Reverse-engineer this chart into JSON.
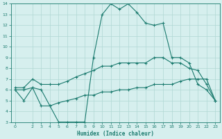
{
  "xlabel": "Humidex (Indice chaleur)",
  "bg_color": "#d6efee",
  "grid_color": "#b0d8d4",
  "line_color": "#1a7a6e",
  "xlim": [
    -0.5,
    23.5
  ],
  "ylim": [
    3,
    14
  ],
  "yticks": [
    3,
    4,
    5,
    6,
    7,
    8,
    9,
    10,
    11,
    12,
    13,
    14
  ],
  "xticks": [
    0,
    2,
    3,
    4,
    5,
    6,
    7,
    8,
    9,
    10,
    11,
    12,
    13,
    14,
    15,
    16,
    17,
    18,
    19,
    20,
    21,
    22,
    23
  ],
  "line1_x": [
    0,
    1,
    2,
    3,
    4,
    5,
    6,
    7,
    8,
    9,
    10,
    11,
    12,
    13,
    14,
    15,
    16,
    17,
    18,
    19,
    20,
    21,
    22,
    23
  ],
  "line1_y": [
    6.0,
    5.0,
    6.2,
    6.0,
    4.5,
    3.0,
    3.0,
    3.0,
    3.0,
    9.0,
    13.0,
    14.0,
    13.5,
    14.0,
    13.2,
    12.2,
    12.0,
    12.2,
    9.0,
    9.0,
    8.5,
    6.5,
    6.0,
    5.0
  ],
  "line2_x": [
    0,
    1,
    2,
    3,
    4,
    5,
    6,
    7,
    8,
    9,
    10,
    11,
    12,
    13,
    14,
    15,
    16,
    17,
    18,
    19,
    20,
    21,
    22,
    23
  ],
  "line2_y": [
    6.2,
    6.2,
    7.0,
    6.5,
    6.5,
    6.5,
    6.8,
    7.2,
    7.5,
    7.8,
    8.2,
    8.2,
    8.5,
    8.5,
    8.5,
    8.5,
    9.0,
    9.0,
    8.5,
    8.5,
    8.0,
    7.8,
    6.5,
    5.0
  ],
  "line3_x": [
    0,
    1,
    2,
    3,
    4,
    5,
    6,
    7,
    8,
    9,
    10,
    11,
    12,
    13,
    14,
    15,
    16,
    17,
    18,
    19,
    20,
    21,
    22,
    23
  ],
  "line3_y": [
    6.0,
    6.0,
    6.2,
    4.5,
    4.5,
    4.8,
    5.0,
    5.2,
    5.5,
    5.5,
    5.8,
    5.8,
    6.0,
    6.0,
    6.2,
    6.2,
    6.5,
    6.5,
    6.5,
    6.8,
    7.0,
    7.0,
    7.0,
    5.0
  ]
}
